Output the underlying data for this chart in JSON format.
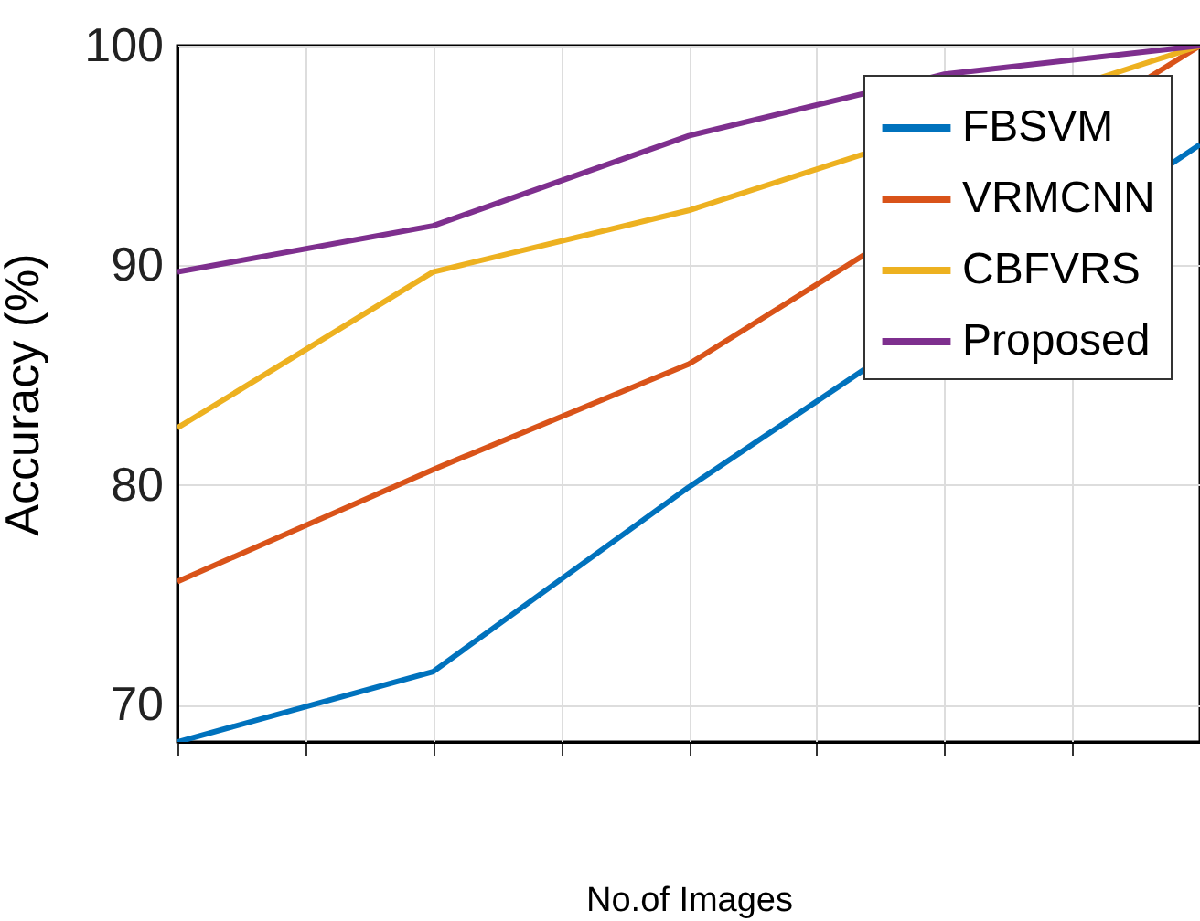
{
  "chart_data": {
    "type": "line",
    "xlabel": "No.of Images",
    "ylabel": "Accuracy (%)",
    "categories": [
      null,
      null,
      null,
      null,
      null
    ],
    "ylim": [
      68.3,
      100
    ],
    "yticks": [
      70,
      80,
      90,
      100
    ],
    "grid": true,
    "legend": "top right",
    "line_style": "solid",
    "marker": "none",
    "series": [
      {
        "name": "FBSVM",
        "color": "#0072bd",
        "values": [
          68.3,
          71.5,
          79.9,
          null,
          95.5
        ]
      },
      {
        "name": "VRMCNN",
        "color": "#d95319",
        "values": [
          75.6,
          80.7,
          85.5,
          null,
          100
        ]
      },
      {
        "name": "CBFVRS",
        "color": "#edb120",
        "values": [
          82.6,
          89.7,
          92.5,
          null,
          100
        ]
      },
      {
        "name": "Proposed",
        "color": "#7e2f8e",
        "values": [
          89.7,
          91.8,
          95.9,
          98.7,
          100
        ]
      }
    ]
  }
}
